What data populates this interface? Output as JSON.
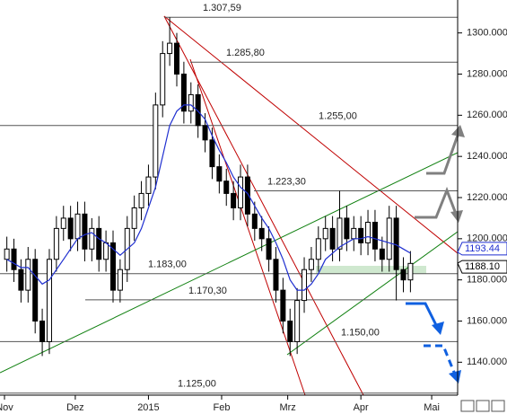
{
  "chart_data": {
    "type": "candlestick",
    "x": [
      1,
      4,
      7,
      10,
      13,
      16,
      19,
      22,
      25,
      28,
      31,
      34,
      37,
      40,
      43,
      46,
      49,
      52,
      55,
      58,
      61,
      64,
      67,
      70,
      73,
      76,
      79,
      82,
      85,
      88,
      91,
      94,
      97,
      100,
      103,
      106,
      109,
      112,
      115,
      118,
      121,
      124,
      127,
      130,
      133,
      136,
      139,
      142,
      145,
      148,
      151,
      154,
      157,
      160,
      163,
      166,
      169,
      172
    ],
    "open": [
      1190,
      1195,
      1185,
      1175,
      1190,
      1160,
      1150,
      1190,
      1205,
      1210,
      1200,
      1212,
      1195,
      1205,
      1190,
      1198,
      1175,
      1185,
      1205,
      1215,
      1222,
      1230,
      1265,
      1290,
      1295,
      1280,
      1262,
      1270,
      1255,
      1248,
      1235,
      1228,
      1222,
      1215,
      1230,
      1212,
      1205,
      1200,
      1190,
      1175,
      1160,
      1150,
      1170,
      1185,
      1190,
      1200,
      1205,
      1195,
      1210,
      1200,
      1205,
      1198,
      1208,
      1195,
      1190,
      1210,
      1185,
      1180
    ],
    "high": [
      1201,
      1200,
      1190,
      1196,
      1195,
      1166,
      1195,
      1211,
      1216,
      1216,
      1218,
      1218,
      1210,
      1211,
      1204,
      1204,
      1190,
      1211,
      1221,
      1228,
      1236,
      1271,
      1296,
      1307.59,
      1300,
      1286,
      1276,
      1275,
      1261,
      1254,
      1241,
      1234,
      1228,
      1236,
      1236,
      1218,
      1211,
      1206,
      1196,
      1181,
      1166,
      1176,
      1191,
      1196,
      1206,
      1211,
      1211,
      1223.3,
      1216,
      1211,
      1211,
      1214,
      1214,
      1201,
      1216,
      1216,
      1191,
      1194
    ],
    "low": [
      1184,
      1179,
      1169,
      1169,
      1154,
      1143,
      1144,
      1184,
      1199,
      1194,
      1194,
      1189,
      1189,
      1184,
      1184,
      1169,
      1169,
      1179,
      1199,
      1209,
      1216,
      1224,
      1259,
      1284,
      1274,
      1256,
      1256,
      1249,
      1242,
      1229,
      1222,
      1216,
      1209,
      1209,
      1206,
      1199,
      1194,
      1184,
      1169,
      1154,
      1143,
      1144,
      1164,
      1179,
      1184,
      1194,
      1189,
      1189,
      1194,
      1194,
      1192,
      1192,
      1189,
      1184,
      1184,
      1170,
      1174,
      1174
    ],
    "close": [
      1195,
      1185,
      1175,
      1190,
      1160,
      1150,
      1190,
      1205,
      1210,
      1200,
      1212,
      1195,
      1205,
      1190,
      1198,
      1175,
      1185,
      1205,
      1215,
      1222,
      1230,
      1265,
      1290,
      1295,
      1280,
      1262,
      1270,
      1255,
      1248,
      1235,
      1228,
      1222,
      1215,
      1230,
      1212,
      1205,
      1200,
      1190,
      1175,
      1160,
      1150,
      1170,
      1185,
      1190,
      1200,
      1205,
      1195,
      1210,
      1200,
      1205,
      1198,
      1208,
      1195,
      1190,
      1210,
      1185,
      1180,
      1188
    ],
    "ma_color": "#1f2fd0",
    "ma_values": [
      1190,
      1188,
      1186,
      1186,
      1182,
      1178,
      1180,
      1185,
      1190,
      1195,
      1200,
      1202,
      1203,
      1200,
      1198,
      1195,
      1192,
      1195,
      1198,
      1205,
      1215,
      1225,
      1240,
      1255,
      1262,
      1265,
      1265,
      1262,
      1258,
      1250,
      1243,
      1237,
      1230,
      1225,
      1222,
      1216,
      1210,
      1205,
      1198,
      1190,
      1180,
      1175,
      1175,
      1178,
      1183,
      1190,
      1193,
      1196,
      1198,
      1200,
      1200,
      1201,
      1200,
      1199,
      1198,
      1197,
      1195,
      1193
    ],
    "xlim": [
      -1.9,
      192
    ],
    "xticks": [
      {
        "value": 0,
        "label": "Nov"
      },
      {
        "value": 30,
        "label": "Dez"
      },
      {
        "value": 61,
        "label": "2015"
      },
      {
        "value": 92,
        "label": "Feb"
      },
      {
        "value": 120,
        "label": "Mrz"
      },
      {
        "value": 151,
        "label": "Apr"
      },
      {
        "value": 181,
        "label": "Mai"
      }
    ],
    "ylim": [
      1124,
      1316
    ],
    "yticks": [
      {
        "value": 1140,
        "label": "1140.000"
      },
      {
        "value": 1160,
        "label": "1160.000"
      },
      {
        "value": 1180,
        "label": "1180.000"
      },
      {
        "value": 1200,
        "label": "1200.000"
      },
      {
        "value": 1220,
        "label": "1220.000"
      },
      {
        "value": 1240,
        "label": "1240.000"
      },
      {
        "value": 1260,
        "label": "1260.000"
      },
      {
        "value": 1280,
        "label": "1280.000"
      },
      {
        "value": 1300,
        "label": "1300.000"
      }
    ],
    "levels": [
      {
        "value": 1307.59,
        "label": "1.307,59"
      },
      {
        "value": 1285.8,
        "label": "1.285,80"
      },
      {
        "value": 1255,
        "label": "1.255,00"
      },
      {
        "value": 1223.3,
        "label": "1.223,30"
      },
      {
        "value": 1183,
        "label": "1.183,00"
      },
      {
        "value": 1170.3,
        "label": "1.170,30"
      },
      {
        "value": 1150,
        "label": "1.150,00"
      },
      {
        "value": 1125,
        "label": "1.125,00"
      }
    ],
    "last_labels": [
      {
        "value": 1193.44,
        "label": "1193.44",
        "color": "#1f2fd0"
      },
      {
        "value": 1188.1,
        "label": "1188.10",
        "color": "#000000"
      }
    ]
  }
}
